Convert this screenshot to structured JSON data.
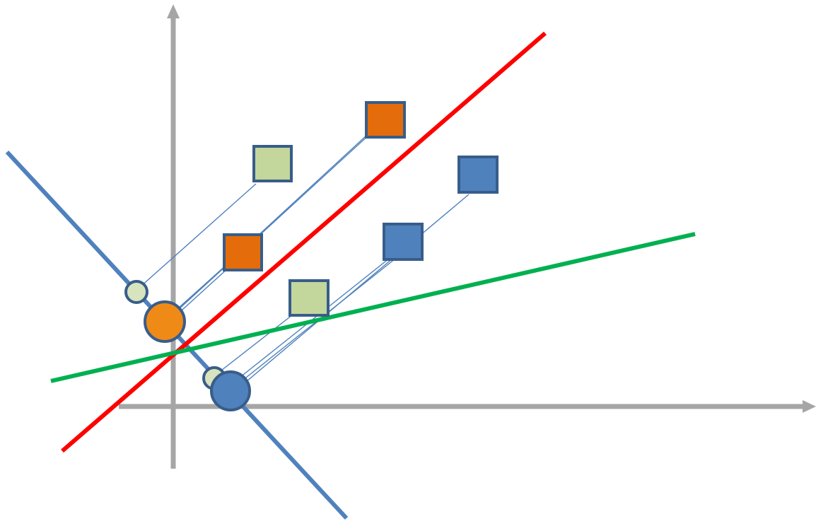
{
  "colors": {
    "axis": "#A6A6A6",
    "projection_line": "#4F81BD",
    "red_line": "#FF0000",
    "green_line": "#00B050",
    "outline": "#385D8A",
    "green_fill": "#C3D69B",
    "orange_fill": "#E46C0A",
    "orange_point_fill": "#F08A17",
    "blue_fill": "#4F81BD",
    "light_point_fill": "#D7E4BD"
  },
  "diagram": {
    "axes": [
      "x-axis",
      "y-axis"
    ],
    "lines": [
      "projection-line",
      "red-separator-line",
      "green-separator-line"
    ],
    "square_groups": [
      {
        "name": "green",
        "count": 2
      },
      {
        "name": "orange",
        "count": 2
      },
      {
        "name": "blue",
        "count": 2
      }
    ],
    "projected_points": [
      {
        "group": "green",
        "count": 2
      },
      {
        "group": "orange",
        "count": 1
      },
      {
        "group": "blue",
        "count": 1
      }
    ]
  }
}
